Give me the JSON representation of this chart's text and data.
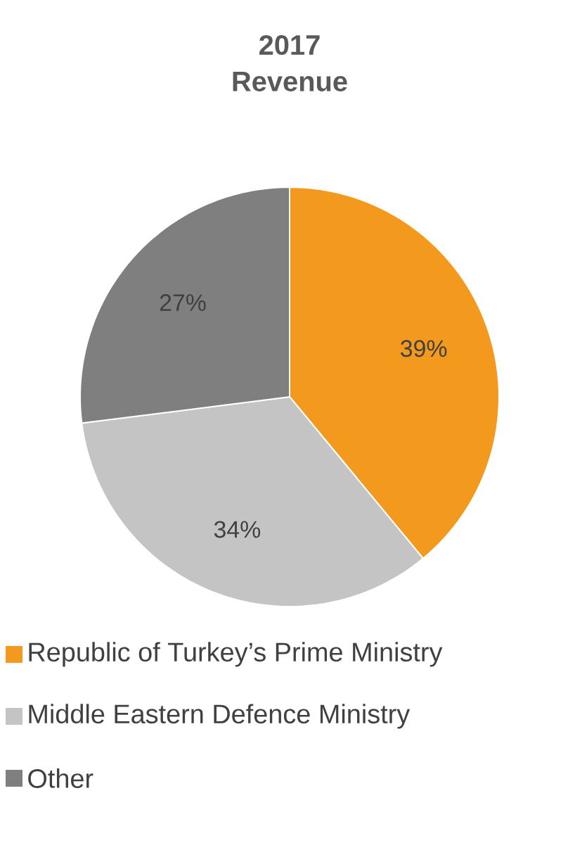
{
  "chart_data": {
    "type": "pie",
    "title": "2017",
    "subtitle": "Revenue",
    "categories": [
      "Republic of Turkey’s Prime Ministry",
      "Middle Eastern Defence Ministry",
      "Other"
    ],
    "values": [
      39,
      34,
      27
    ],
    "value_labels": [
      "39%",
      "34%",
      "27%"
    ],
    "colors": [
      "#f39a1e",
      "#c4c4c4",
      "#7f7f7f"
    ],
    "legend": "bottom"
  }
}
